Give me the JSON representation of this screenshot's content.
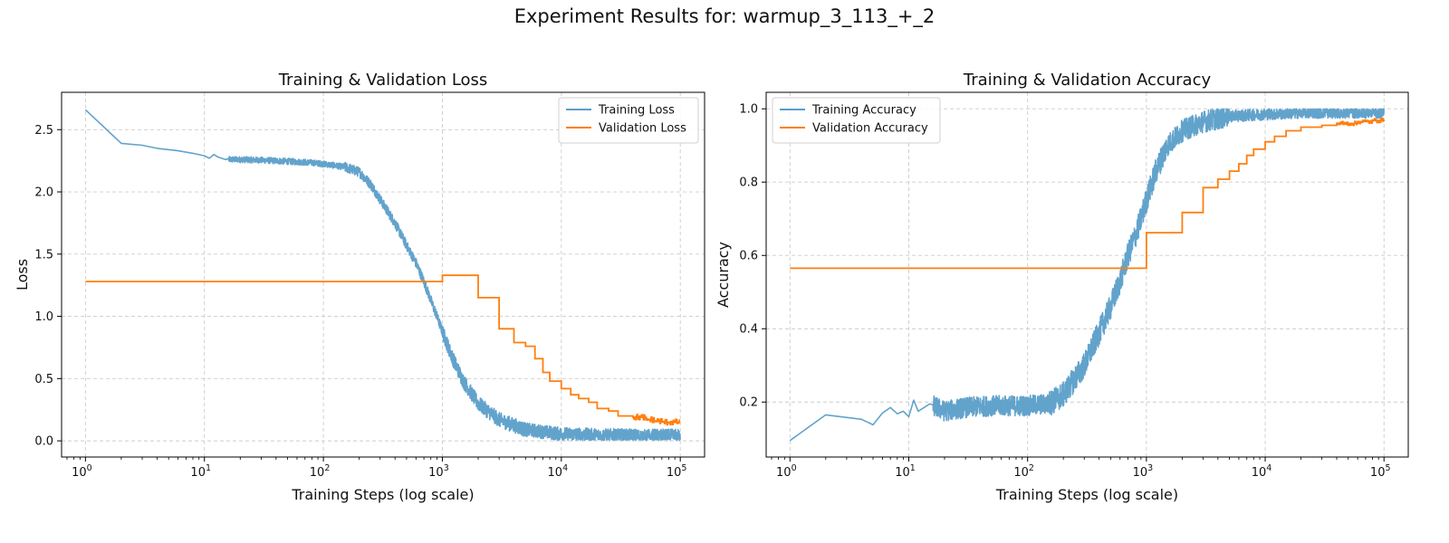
{
  "suptitle": "Experiment Results for: warmup_3_113_+_2",
  "colors": {
    "training": "#5a9ec9",
    "validation": "#ff7f0e",
    "grid": "#cccccc"
  },
  "chart_data": [
    {
      "type": "line",
      "title": "Training & Validation Loss",
      "xlabel": "Training Steps (log scale)",
      "ylabel": "Loss",
      "xscale": "log",
      "xlim": [
        0.63,
        160000
      ],
      "ylim": [
        -0.13,
        2.8
      ],
      "x_tick_values": [
        1,
        10,
        100,
        1000,
        10000,
        100000
      ],
      "x_tick_exponents": [
        "0",
        "1",
        "2",
        "3",
        "4",
        "5"
      ],
      "x_tick_base": "10",
      "y_ticks": [
        0.0,
        0.5,
        1.0,
        1.5,
        2.0,
        2.5
      ],
      "y_tick_labels": [
        "0.0",
        "0.5",
        "1.0",
        "1.5",
        "2.0",
        "2.5"
      ],
      "grid": true,
      "legend_position": "upper right",
      "series": [
        {
          "name": "Training Loss",
          "noisy": true,
          "points": [
            [
              1,
              2.66
            ],
            [
              2,
              2.39
            ],
            [
              3,
              2.375
            ],
            [
              4,
              2.35
            ],
            [
              6,
              2.33
            ],
            [
              8,
              2.31
            ],
            [
              10,
              2.29
            ],
            [
              11,
              2.27
            ],
            [
              12,
              2.3
            ],
            [
              13,
              2.28
            ],
            [
              15,
              2.26
            ],
            [
              20,
              2.26
            ],
            [
              30,
              2.255
            ],
            [
              50,
              2.245
            ],
            [
              80,
              2.235
            ],
            [
              100,
              2.225
            ],
            [
              150,
              2.2
            ],
            [
              200,
              2.16
            ],
            [
              250,
              2.06
            ],
            [
              300,
              1.94
            ],
            [
              400,
              1.75
            ],
            [
              500,
              1.57
            ],
            [
              600,
              1.43
            ],
            [
              700,
              1.28
            ],
            [
              800,
              1.13
            ],
            [
              900,
              1.0
            ],
            [
              1000,
              0.88
            ],
            [
              1200,
              0.68
            ],
            [
              1500,
              0.48
            ],
            [
              2000,
              0.3
            ],
            [
              3000,
              0.17
            ],
            [
              5000,
              0.09
            ],
            [
              10000,
              0.055
            ],
            [
              20000,
              0.045
            ],
            [
              50000,
              0.04
            ],
            [
              100000,
              0.04
            ]
          ]
        },
        {
          "name": "Validation Loss",
          "step": true,
          "points": [
            [
              1,
              1.28
            ],
            [
              1000,
              1.33
            ],
            [
              2000,
              1.15
            ],
            [
              3000,
              0.9
            ],
            [
              4000,
              0.79
            ],
            [
              5000,
              0.76
            ],
            [
              6000,
              0.66
            ],
            [
              7000,
              0.55
            ],
            [
              8000,
              0.48
            ],
            [
              10000,
              0.42
            ],
            [
              12000,
              0.37
            ],
            [
              14000,
              0.34
            ],
            [
              17000,
              0.31
            ],
            [
              20000,
              0.26
            ],
            [
              25000,
              0.24
            ],
            [
              30000,
              0.2
            ],
            [
              40000,
              0.19
            ],
            [
              50000,
              0.17
            ],
            [
              60000,
              0.16
            ],
            [
              70000,
              0.15
            ],
            [
              80000,
              0.15
            ],
            [
              100000,
              0.15
            ]
          ]
        }
      ]
    },
    {
      "type": "line",
      "title": "Training & Validation Accuracy",
      "xlabel": "Training Steps (log scale)",
      "ylabel": "Accuracy",
      "xscale": "log",
      "xlim": [
        0.63,
        160000
      ],
      "ylim": [
        0.05,
        1.045
      ],
      "x_tick_values": [
        1,
        10,
        100,
        1000,
        10000,
        100000
      ],
      "x_tick_exponents": [
        "0",
        "1",
        "2",
        "3",
        "4",
        "5"
      ],
      "x_tick_base": "10",
      "y_ticks": [
        0.2,
        0.4,
        0.6,
        0.8,
        1.0
      ],
      "y_tick_labels": [
        "0.2",
        "0.4",
        "0.6",
        "0.8",
        "1.0"
      ],
      "grid": true,
      "legend_position": "upper left",
      "series": [
        {
          "name": "Training Accuracy",
          "noisy": true,
          "points": [
            [
              1,
              0.095
            ],
            [
              2,
              0.165
            ],
            [
              4,
              0.153
            ],
            [
              5,
              0.138
            ],
            [
              6,
              0.17
            ],
            [
              7,
              0.185
            ],
            [
              8,
              0.168
            ],
            [
              9,
              0.175
            ],
            [
              10,
              0.16
            ],
            [
              11,
              0.205
            ],
            [
              12,
              0.175
            ],
            [
              15,
              0.195
            ],
            [
              20,
              0.175
            ],
            [
              30,
              0.185
            ],
            [
              50,
              0.19
            ],
            [
              100,
              0.19
            ],
            [
              150,
              0.195
            ],
            [
              200,
              0.22
            ],
            [
              300,
              0.3
            ],
            [
              400,
              0.39
            ],
            [
              500,
              0.46
            ],
            [
              600,
              0.53
            ],
            [
              700,
              0.6
            ],
            [
              800,
              0.65
            ],
            [
              900,
              0.7
            ],
            [
              1000,
              0.75
            ],
            [
              1200,
              0.83
            ],
            [
              1500,
              0.9
            ],
            [
              2000,
              0.94
            ],
            [
              3000,
              0.965
            ],
            [
              5000,
              0.98
            ],
            [
              10000,
              0.985
            ],
            [
              20000,
              0.99
            ],
            [
              50000,
              0.99
            ],
            [
              100000,
              0.99
            ]
          ]
        },
        {
          "name": "Validation Accuracy",
          "step": true,
          "points": [
            [
              1,
              0.565
            ],
            [
              1000,
              0.662
            ],
            [
              2000,
              0.717
            ],
            [
              3000,
              0.785
            ],
            [
              4000,
              0.808
            ],
            [
              5000,
              0.83
            ],
            [
              6000,
              0.85
            ],
            [
              7000,
              0.873
            ],
            [
              8000,
              0.89
            ],
            [
              10000,
              0.91
            ],
            [
              12000,
              0.925
            ],
            [
              15000,
              0.94
            ],
            [
              20000,
              0.95
            ],
            [
              30000,
              0.955
            ],
            [
              40000,
              0.96
            ],
            [
              60000,
              0.965
            ],
            [
              80000,
              0.968
            ],
            [
              100000,
              0.97
            ]
          ]
        }
      ]
    }
  ]
}
